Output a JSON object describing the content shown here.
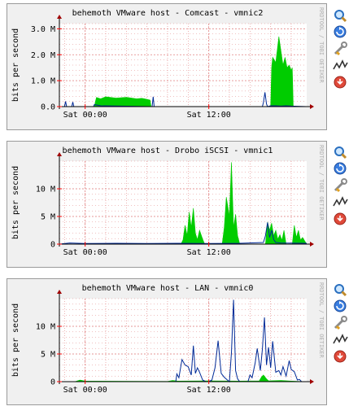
{
  "watermark": "RRDTOOL / TOBI OETIKER",
  "colors": {
    "in_area": "#00cc00",
    "out_line": "#002a97",
    "grid": "#e08080",
    "panel_bg": "#f0f0f0",
    "axis": "#000000",
    "arrow": "#a00000"
  },
  "icons": [
    "zoom-icon",
    "refresh-icon",
    "tools-icon",
    "graph-icon",
    "close-icon"
  ],
  "chart_data": [
    {
      "type": "area",
      "title": "behemoth VMware host - Comcast - vmnic2",
      "ylabel": "bits per second",
      "ylim": [
        0,
        3200000
      ],
      "y_ticks": [
        0,
        1000000,
        2000000,
        3000000
      ],
      "y_tick_labels": [
        "0.0",
        "1.0 M",
        "2.0 M",
        "3.0 M"
      ],
      "xlim": [
        -2.5,
        21.5
      ],
      "x_ticks": [
        0,
        12
      ],
      "x_tick_labels": [
        "Sat 00:00",
        "Sat 12:00"
      ],
      "series": [
        {
          "role": "in",
          "style": "area",
          "x": [
            -2.5,
            0.9,
            1.0,
            1.1,
            1.5,
            2.0,
            3.0,
            4.0,
            5.0,
            5.5,
            6.0,
            6.3,
            6.4,
            18.0,
            18.1,
            18.2,
            18.5,
            18.8,
            19.2,
            19.4,
            19.6,
            19.8,
            20.0,
            20.1,
            20.2,
            21.5
          ],
          "y": [
            0,
            0,
            200000,
            350000,
            300000,
            380000,
            330000,
            360000,
            300000,
            320000,
            280000,
            250000,
            0,
            0,
            1500000,
            1900000,
            1700000,
            2700000,
            1600000,
            1900000,
            1500000,
            1600000,
            1400000,
            1500000,
            0,
            0
          ]
        },
        {
          "role": "out",
          "style": "line",
          "x": [
            -2.5,
            -2.0,
            -1.9,
            -1.8,
            -1.3,
            -1.2,
            -1.1,
            0.8,
            0.9,
            1.5,
            6.4,
            6.5,
            6.6,
            6.7,
            7.0,
            17.2,
            17.3,
            17.45,
            17.6,
            17.7,
            18.0,
            18.5,
            19.0,
            19.5,
            20.0,
            21.5
          ],
          "y": [
            0,
            0,
            200000,
            0,
            0,
            180000,
            0,
            0,
            80000,
            30000,
            0,
            0,
            380000,
            0,
            0,
            0,
            150000,
            550000,
            100000,
            0,
            30000,
            30000,
            20000,
            30000,
            20000,
            0
          ]
        }
      ]
    },
    {
      "type": "area",
      "title": "behemoth VMware host - Drobo iSCSI - vmnic1",
      "ylabel": "bits per second",
      "ylim": [
        0,
        15000000
      ],
      "y_ticks": [
        0,
        5000000,
        10000000
      ],
      "y_tick_labels": [
        "0",
        "5 M",
        "10 M"
      ],
      "xlim": [
        -2.5,
        21.5
      ],
      "x_ticks": [
        0,
        12
      ],
      "x_tick_labels": [
        "Sat 00:00",
        "Sat 12:00"
      ],
      "series": [
        {
          "role": "in",
          "style": "area",
          "x": [
            -2.5,
            9.3,
            9.5,
            9.7,
            9.9,
            10.1,
            10.3,
            10.5,
            10.7,
            10.9,
            11.1,
            11.4,
            11.6,
            13.3,
            13.5,
            13.7,
            14.0,
            14.2,
            14.4,
            14.6,
            14.8,
            15.0,
            17.5,
            17.7,
            17.9,
            18.1,
            18.3,
            18.5,
            18.7,
            18.9,
            19.1,
            19.3,
            19.5,
            20.1,
            20.3,
            20.5,
            20.7,
            20.9,
            21.1,
            21.5
          ],
          "y": [
            0,
            0,
            800000,
            3400000,
            1500000,
            5800000,
            3000000,
            6500000,
            2000000,
            800000,
            2500000,
            900000,
            0,
            0,
            3000000,
            8500000,
            5000000,
            14800000,
            3000000,
            5400000,
            1500000,
            0,
            0,
            4000000,
            2500000,
            3800000,
            1500000,
            2500000,
            900000,
            1700000,
            700000,
            2500000,
            0,
            0,
            3400000,
            1200000,
            2500000,
            700000,
            1200000,
            0
          ]
        },
        {
          "role": "out",
          "style": "line",
          "x": [
            -2.5,
            -1.5,
            0,
            3.0,
            6.0,
            9.0,
            12.0,
            15.0,
            17.3,
            17.5,
            17.7,
            17.9,
            18.1,
            18.3,
            18.5,
            19.0,
            21.5
          ],
          "y": [
            0,
            200000,
            100000,
            150000,
            100000,
            150000,
            100000,
            150000,
            300000,
            1500000,
            3900000,
            1200000,
            2500000,
            800000,
            300000,
            200000,
            150000
          ]
        }
      ]
    },
    {
      "type": "line",
      "title": "behemoth VMware host - LAN - vmnic0",
      "ylabel": "bits per second",
      "ylim": [
        0,
        15000000
      ],
      "y_ticks": [
        0,
        5000000,
        10000000
      ],
      "y_tick_labels": [
        "0",
        "5 M",
        "10 M"
      ],
      "xlim": [
        -2.5,
        21.5
      ],
      "x_ticks": [
        0,
        12
      ],
      "x_tick_labels": [
        "Sat 00:00",
        "Sat 12:00"
      ],
      "series": [
        {
          "role": "in",
          "style": "area",
          "x": [
            -2.5,
            -1.0,
            -0.5,
            0,
            8.0,
            8.5,
            9.0,
            12.0,
            15.0,
            16.9,
            17.1,
            17.3,
            17.6,
            17.8,
            19.0,
            20.0,
            21.5
          ],
          "y": [
            0,
            0,
            300000,
            100000,
            50000,
            200000,
            100000,
            150000,
            100000,
            150000,
            800000,
            1200000,
            500000,
            150000,
            200000,
            100000,
            0
          ]
        },
        {
          "role": "out",
          "style": "line",
          "x": [
            -2.5,
            8.8,
            8.9,
            9.1,
            9.4,
            9.7,
            10.0,
            10.3,
            10.5,
            10.7,
            10.9,
            11.1,
            11.4,
            11.7,
            12.0,
            12.3,
            12.6,
            12.9,
            13.2,
            13.5,
            13.8,
            14.0,
            14.2,
            14.4,
            14.6,
            14.8,
            15.0,
            15.3,
            15.8,
            16.0,
            16.2,
            16.5,
            16.7,
            17.0,
            17.2,
            17.4,
            17.6,
            17.8,
            18.0,
            18.2,
            18.5,
            18.8,
            19.0,
            19.2,
            19.5,
            19.8,
            20.0,
            20.3,
            20.6,
            20.8,
            21.0,
            21.5
          ],
          "y": [
            0,
            0,
            1400000,
            700000,
            4000000,
            3000000,
            2700000,
            1200000,
            6500000,
            1500000,
            2500000,
            1700000,
            300000,
            0,
            0,
            300000,
            2500000,
            7400000,
            1500000,
            800000,
            300000,
            0,
            5200000,
            14800000,
            2000000,
            500000,
            0,
            0,
            0,
            1200000,
            700000,
            3400000,
            6000000,
            2000000,
            5800000,
            11600000,
            3000000,
            6200000,
            2500000,
            7300000,
            1700000,
            2000000,
            1200000,
            2700000,
            1000000,
            3800000,
            2200000,
            1800000,
            300000,
            400000,
            0,
            0
          ]
        }
      ]
    }
  ]
}
